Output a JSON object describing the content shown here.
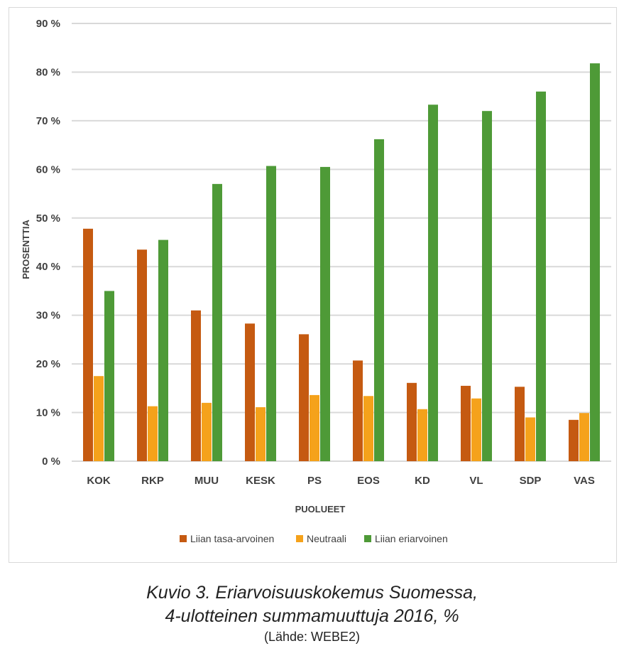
{
  "caption": {
    "line1": "Kuvio 3. Eriarvoisuuskokemus Suomessa,",
    "line2": "4-ulotteinen summamuuttuja 2016, %",
    "source": "(Lähde: WEBE2)"
  },
  "chart_data": {
    "type": "bar",
    "xlabel": "PUOLUEET",
    "ylabel": "PROSENTTIA",
    "ylim": [
      0,
      90
    ],
    "yticks": [
      0,
      10,
      20,
      30,
      40,
      50,
      60,
      70,
      80,
      90
    ],
    "ytick_labels": [
      "0 %",
      "10 %",
      "20 %",
      "30 %",
      "40 %",
      "50 %",
      "60 %",
      "70 %",
      "80 %",
      "90 %"
    ],
    "grid": true,
    "legend_position": "bottom",
    "categories": [
      "KOK",
      "RKP",
      "MUU",
      "KESK",
      "PS",
      "EOS",
      "KD",
      "VL",
      "SDP",
      "VAS"
    ],
    "series": [
      {
        "name": "Liian tasa-arvoinen",
        "color": "#c55a11",
        "values": [
          47.8,
          43.5,
          31.0,
          28.3,
          26.1,
          20.7,
          16.1,
          15.5,
          15.3,
          8.5
        ]
      },
      {
        "name": "Neutraali",
        "color": "#f5a21b",
        "values": [
          17.5,
          11.3,
          12.0,
          11.1,
          13.6,
          13.4,
          10.7,
          12.9,
          9.0,
          9.9
        ]
      },
      {
        "name": "Liian eriarvoinen",
        "color": "#4e9a37",
        "values": [
          35.0,
          45.5,
          57.0,
          60.7,
          60.5,
          66.2,
          73.3,
          72.0,
          76.0,
          81.8
        ]
      }
    ]
  }
}
